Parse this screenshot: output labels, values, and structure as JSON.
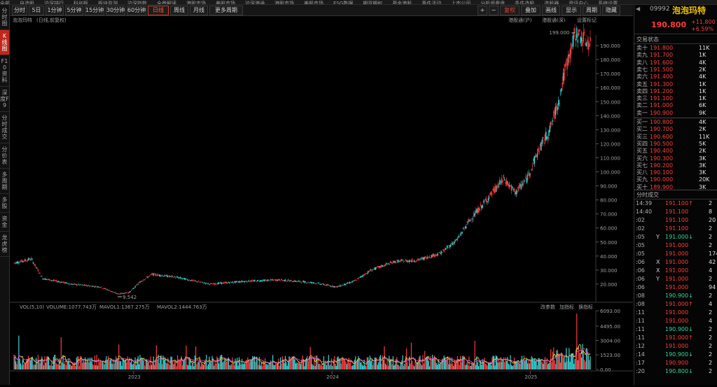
{
  "top_menu": [
    "全部",
    "自选股",
    "沪深排行",
    "科创板",
    "板块监测",
    "沪深指数",
    "全景解读",
    "港股市场",
    "美股市场",
    "沪深港通",
    "港股市场",
    "美股市场",
    "ESG数据",
    "期货期权",
    "基金港股",
    "事件活动",
    "上市公司",
    "分析师看盘",
    "条件选股",
    "选股器",
    "资讯中心",
    "系统设置"
  ],
  "sidebar": [
    {
      "label": "分时图",
      "active": false
    },
    {
      "label": "K线图",
      "active": true
    },
    {
      "label": "F10资料",
      "active": false
    },
    {
      "label": "深度F9",
      "active": false
    },
    {
      "label": "分时成交",
      "active": false
    },
    {
      "label": "分价表",
      "active": false
    },
    {
      "label": "多周期",
      "active": false
    },
    {
      "label": "多股",
      "active": false
    },
    {
      "label": "资金",
      "active": false
    },
    {
      "label": "龙虎榜",
      "active": false
    }
  ],
  "toolbar": {
    "periods": [
      "分时",
      "5日",
      "1分钟",
      "5分钟",
      "15分钟",
      "30分钟",
      "60分钟",
      "日线",
      "周线",
      "月线",
      "更多周期"
    ],
    "active_period": "日线",
    "right_buttons": [
      "+",
      "−",
      "复权",
      "叠加",
      "画线",
      "显示",
      "周期",
      "隐藏"
    ]
  },
  "chart": {
    "stock_label": "泡泡玛特",
    "adjust_label": "(日线,前复权)",
    "hk_connect_1": "港股通(沪)",
    "hk_connect_2": "港股通(深)",
    "settings_label": "设置标记",
    "high_annot": "199.000",
    "low_annot": "9.542",
    "price_ticks": [
      "190.000",
      "180.000",
      "170.000",
      "160.000",
      "150.000",
      "140.000",
      "130.000",
      "120.000",
      "110.000",
      "100.000",
      "90.000",
      "80.000",
      "70.000",
      "60.000",
      "50.000",
      "40.000",
      "30.000",
      "20.000"
    ],
    "vol_ticks": [
      "6093.00",
      "4495.00",
      "3004.00",
      "1523.00",
      "0.00"
    ],
    "vol_label_main": "VOL(5,10)",
    "vol_label_volume": "VOLUME:1077.743万",
    "vol_label_ma1": "MAVOL1:1367.275万",
    "vol_label_ma2": "MAVOL2:1444.763万",
    "vol_buttons": [
      "改参数",
      "加指标",
      "换指标"
    ],
    "x_years": [
      "2023",
      "2024",
      "2025"
    ],
    "colors": {
      "up": "#ff3b3b",
      "down": "#33d6d6",
      "ma1": "#e6e64a",
      "ma2": "#e04bd6",
      "bg": "#000000"
    }
  },
  "chart_data": {
    "type": "candlestick",
    "title": "泡泡玛特",
    "ylim": [
      10,
      200
    ],
    "x_labels": [
      "2023",
      "2024",
      "2025"
    ],
    "close_path": [
      {
        "t": 0.0,
        "v": 35
      },
      {
        "t": 0.03,
        "v": 38
      },
      {
        "t": 0.05,
        "v": 24
      },
      {
        "t": 0.1,
        "v": 20
      },
      {
        "t": 0.15,
        "v": 18
      },
      {
        "t": 0.18,
        "v": 13
      },
      {
        "t": 0.2,
        "v": 14
      },
      {
        "t": 0.22,
        "v": 22
      },
      {
        "t": 0.24,
        "v": 27
      },
      {
        "t": 0.28,
        "v": 25
      },
      {
        "t": 0.34,
        "v": 20
      },
      {
        "t": 0.4,
        "v": 22
      },
      {
        "t": 0.46,
        "v": 23
      },
      {
        "t": 0.52,
        "v": 21
      },
      {
        "t": 0.56,
        "v": 18
      },
      {
        "t": 0.59,
        "v": 22
      },
      {
        "t": 0.62,
        "v": 30
      },
      {
        "t": 0.66,
        "v": 36
      },
      {
        "t": 0.7,
        "v": 37
      },
      {
        "t": 0.74,
        "v": 42
      },
      {
        "t": 0.77,
        "v": 52
      },
      {
        "t": 0.79,
        "v": 65
      },
      {
        "t": 0.82,
        "v": 80
      },
      {
        "t": 0.85,
        "v": 95
      },
      {
        "t": 0.87,
        "v": 85
      },
      {
        "t": 0.89,
        "v": 95
      },
      {
        "t": 0.91,
        "v": 115
      },
      {
        "t": 0.93,
        "v": 130
      },
      {
        "t": 0.945,
        "v": 150
      },
      {
        "t": 0.955,
        "v": 170
      },
      {
        "t": 0.965,
        "v": 185
      },
      {
        "t": 0.975,
        "v": 199
      },
      {
        "t": 1.0,
        "v": 190.8
      }
    ],
    "volume_max": 6093,
    "volume_avg": 1100
  },
  "quote": {
    "code": "09992",
    "name": "泡泡玛特",
    "price": "190.800",
    "change": "+11.800",
    "change_pct": "+6.59%",
    "section_label": "交易状态",
    "sell_rows": [
      {
        "label": "卖十",
        "price": "191.800",
        "vol": "11K"
      },
      {
        "label": "卖九",
        "price": "191.700",
        "vol": "1K"
      },
      {
        "label": "卖八",
        "price": "191.600",
        "vol": "4K"
      },
      {
        "label": "卖七",
        "price": "191.500",
        "vol": "2K"
      },
      {
        "label": "卖六",
        "price": "191.400",
        "vol": "4K"
      },
      {
        "label": "卖五",
        "price": "191.300",
        "vol": "1K"
      },
      {
        "label": "卖四",
        "price": "191.200",
        "vol": "1K"
      },
      {
        "label": "卖三",
        "price": "191.100",
        "vol": "1K"
      },
      {
        "label": "卖二",
        "price": "191.000",
        "vol": "6K"
      },
      {
        "label": "卖一",
        "price": "190.900",
        "vol": "9K"
      }
    ],
    "buy_rows": [
      {
        "label": "买一",
        "price": "190.800",
        "vol": "4K"
      },
      {
        "label": "买二",
        "price": "190.700",
        "vol": "2K"
      },
      {
        "label": "买三",
        "price": "190.600",
        "vol": "11K"
      },
      {
        "label": "买四",
        "price": "190.500",
        "vol": "5K"
      },
      {
        "label": "买五",
        "price": "190.400",
        "vol": "2K"
      },
      {
        "label": "买六",
        "price": "190.300",
        "vol": "3K"
      },
      {
        "label": "买七",
        "price": "190.200",
        "vol": "3K"
      },
      {
        "label": "买八",
        "price": "190.100",
        "vol": "3K"
      },
      {
        "label": "买九",
        "price": "190.000",
        "vol": "20K"
      },
      {
        "label": "买十",
        "price": "189.900",
        "vol": "3K"
      }
    ],
    "trades_title": "分时成交",
    "trades": [
      {
        "time": "14:39",
        "flag": "",
        "price": "191.100↑"
      },
      {
        "time": "14:40",
        "flag": "",
        "price": "191.100"
      },
      {
        "time": ":02",
        "flag": "",
        "price": "191.100"
      },
      {
        "time": ":02",
        "flag": "",
        "price": "191.100"
      },
      {
        "time": ":05",
        "flag": "Y",
        "price": "191.000↓"
      },
      {
        "time": ":05",
        "flag": "",
        "price": "191.000"
      },
      {
        "time": ":05",
        "flag": "",
        "price": "191.000"
      },
      {
        "time": ":06",
        "flag": "X",
        "price": "191.000"
      },
      {
        "time": ":06",
        "flag": "X",
        "price": "191.000"
      },
      {
        "time": ":06",
        "flag": "Y",
        "price": "191.000"
      },
      {
        "time": ":06",
        "flag": "",
        "price": "191.000"
      },
      {
        "time": ":08",
        "flag": "",
        "price": "190.900↓"
      },
      {
        "time": ":08",
        "flag": "",
        "price": "191.000↑"
      },
      {
        "time": ":11",
        "flag": "",
        "price": "191.000"
      },
      {
        "time": ":11",
        "flag": "",
        "price": "191.000"
      },
      {
        "time": ":11",
        "flag": "",
        "price": "190.900↓"
      },
      {
        "time": ":11",
        "flag": "",
        "price": "191.000↑"
      },
      {
        "time": ":12",
        "flag": "",
        "price": "191.000"
      },
      {
        "time": ":14",
        "flag": "",
        "price": "190.900↓"
      },
      {
        "time": ":17",
        "flag": "",
        "price": "190.900"
      },
      {
        "time": ":20",
        "flag": "",
        "price": "190.800↓"
      }
    ],
    "trade_vols": [
      "2",
      "8",
      "20",
      "2",
      "2",
      "2",
      "174",
      "42",
      "4",
      "2",
      "94",
      "2",
      "4",
      "2",
      "4",
      "2",
      "2",
      "2",
      "2",
      "2",
      "2"
    ]
  }
}
